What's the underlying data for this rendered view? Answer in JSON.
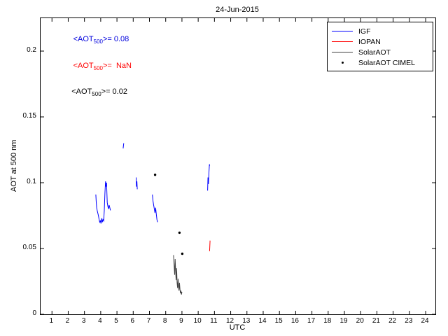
{
  "chart_data": {
    "type": "line",
    "title": "24-Jun-2015",
    "xlabel": "UTC",
    "ylabel": "AOT at 500 nm",
    "xlim": [
      0.3,
      24.6
    ],
    "ylim": [
      0,
      0.225
    ],
    "x_ticks": [
      1,
      2,
      3,
      4,
      5,
      6,
      7,
      8,
      9,
      10,
      11,
      12,
      13,
      14,
      15,
      16,
      17,
      18,
      19,
      20,
      21,
      22,
      23,
      24
    ],
    "y_ticks": [
      0,
      0.05,
      0.1,
      0.15,
      0.2
    ],
    "y_tick_labels": [
      "0",
      "0.05",
      "0.1",
      "0.15",
      "0.2"
    ],
    "grid": false,
    "legend_position": "top-right",
    "series": [
      {
        "name": "IGF",
        "color": "#0000ff",
        "type": "line",
        "segments": [
          [
            [
              3.7,
              0.091
            ],
            [
              3.72,
              0.086
            ],
            [
              3.75,
              0.081
            ],
            [
              3.78,
              0.079
            ],
            [
              3.82,
              0.077
            ],
            [
              3.86,
              0.075
            ],
            [
              3.9,
              0.072
            ],
            [
              3.94,
              0.07
            ],
            [
              3.98,
              0.071
            ],
            [
              4.02,
              0.069
            ],
            [
              4.06,
              0.073
            ],
            [
              4.1,
              0.07
            ],
            [
              4.14,
              0.072
            ],
            [
              4.18,
              0.071
            ],
            [
              4.22,
              0.079
            ],
            [
              4.26,
              0.092
            ],
            [
              4.3,
              0.101
            ],
            [
              4.33,
              0.097
            ],
            [
              4.36,
              0.1
            ],
            [
              4.4,
              0.085
            ],
            [
              4.44,
              0.082
            ],
            [
              4.48,
              0.08
            ],
            [
              4.52,
              0.083
            ],
            [
              4.56,
              0.081
            ],
            [
              4.6,
              0.079
            ]
          ],
          [
            [
              5.38,
              0.126
            ],
            [
              5.42,
              0.13
            ]
          ],
          [
            [
              6.18,
              0.104
            ],
            [
              6.2,
              0.097
            ],
            [
              6.23,
              0.101
            ],
            [
              6.25,
              0.095
            ]
          ],
          [
            [
              7.18,
              0.091
            ],
            [
              7.22,
              0.086
            ],
            [
              7.26,
              0.083
            ],
            [
              7.3,
              0.08
            ],
            [
              7.34,
              0.077
            ],
            [
              7.38,
              0.081
            ],
            [
              7.42,
              0.076
            ],
            [
              7.46,
              0.072
            ],
            [
              7.5,
              0.07
            ]
          ],
          [
            [
              10.58,
              0.094
            ],
            [
              10.6,
              0.104
            ],
            [
              10.63,
              0.099
            ],
            [
              10.66,
              0.108
            ],
            [
              10.69,
              0.114
            ],
            [
              10.71,
              0.113
            ]
          ]
        ]
      },
      {
        "name": "IOPAN",
        "color": "#ff0000",
        "type": "line",
        "segments": [
          [
            [
              10.7,
              0.048
            ],
            [
              10.73,
              0.056
            ]
          ]
        ]
      },
      {
        "name": "SolarAOT",
        "color": "#404040",
        "type": "line",
        "segments": [
          [
            [
              8.48,
              0.045
            ],
            [
              8.52,
              0.037
            ],
            [
              8.55,
              0.03
            ],
            [
              8.58,
              0.042
            ],
            [
              8.61,
              0.033
            ],
            [
              8.64,
              0.026
            ],
            [
              8.67,
              0.035
            ],
            [
              8.7,
              0.024
            ],
            [
              8.73,
              0.02
            ],
            [
              8.76,
              0.027
            ],
            [
              8.79,
              0.021
            ],
            [
              8.82,
              0.018
            ],
            [
              8.85,
              0.024
            ],
            [
              8.88,
              0.019
            ],
            [
              8.91,
              0.016
            ],
            [
              8.94,
              0.018
            ],
            [
              8.97,
              0.015
            ],
            [
              9.0,
              0.017
            ]
          ]
        ]
      },
      {
        "name": "SolarAOT CIMEL",
        "color": "#000000",
        "type": "scatter",
        "points": [
          [
            7.35,
            0.106
          ],
          [
            8.85,
            0.062
          ],
          [
            9.02,
            0.046
          ]
        ]
      }
    ],
    "annotations": [
      {
        "pre": "<AOT",
        "sub": "500",
        "post": ">= 0.08",
        "color": "#0000dd",
        "x": 2.35,
        "y": 0.208
      },
      {
        "pre": "<AOT",
        "sub": "500",
        "post": ">=  NaN",
        "color": "#ff0000",
        "x": 2.35,
        "y": 0.188
      },
      {
        "pre": "<AOT",
        "sub": "500",
        "post": ">= 0.02",
        "color": "#000000",
        "x": 2.25,
        "y": 0.168
      }
    ]
  }
}
